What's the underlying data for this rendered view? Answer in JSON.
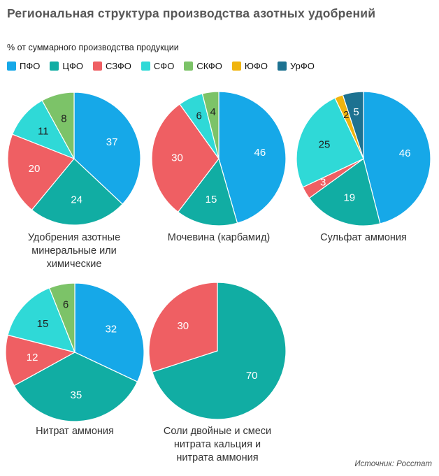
{
  "title": "Региональная структура производства азотных удобрений",
  "subtitle": "% от суммарного производства продукции",
  "source": "Источник: Росстат",
  "legend": {
    "items": [
      {
        "label": "ПФО",
        "color": "#16a8e8"
      },
      {
        "label": "ЦФО",
        "color": "#11ada3"
      },
      {
        "label": "СЗФО",
        "color": "#ef5f63"
      },
      {
        "label": "СФО",
        "color": "#2fd9d7"
      },
      {
        "label": "СКФО",
        "color": "#7cc368"
      },
      {
        "label": "ЮФО",
        "color": "#f0b40e"
      },
      {
        "label": "УрФО",
        "color": "#1d7291"
      }
    ]
  },
  "chart_data": [
    {
      "type": "pie",
      "title": "Удобрения азотные минеральные или химические",
      "title_lines": [
        "Удобрения азотные",
        "минеральные или",
        "химические"
      ],
      "labels": [
        "ПФО",
        "ЦФО",
        "СЗФО",
        "СФО",
        "СКФО"
      ],
      "values": [
        37,
        24,
        20,
        11,
        8
      ]
    },
    {
      "type": "pie",
      "title": "Мочевина (карбамид)",
      "title_lines": [
        "Мочевина (карбамид)"
      ],
      "labels": [
        "ПФО",
        "ЦФО",
        "СЗФО",
        "СФО",
        "СКФО"
      ],
      "values": [
        46,
        15,
        30,
        6,
        4
      ]
    },
    {
      "type": "pie",
      "title": "Сульфат аммония",
      "title_lines": [
        "Сульфат аммония"
      ],
      "labels": [
        "ПФО",
        "ЦФО",
        "СЗФО",
        "СФО",
        "ЮФО",
        "УрФО"
      ],
      "values": [
        46,
        19,
        3,
        25,
        2,
        5
      ]
    },
    {
      "type": "pie",
      "title": "Нитрат аммония",
      "title_lines": [
        "Нитрат аммония"
      ],
      "labels": [
        "ПФО",
        "ЦФО",
        "СЗФО",
        "СФО",
        "СКФО"
      ],
      "values": [
        32,
        35,
        12,
        15,
        6
      ]
    },
    {
      "type": "pie",
      "title": "Соли двойные и смеси нитрата кальция и нитрата аммония",
      "title_lines": [
        "Соли двойные и смеси",
        "нитрата кальция и",
        "нитрата аммония"
      ],
      "labels": [
        "ЦФО",
        "СЗФО"
      ],
      "values": [
        70,
        30
      ]
    }
  ]
}
